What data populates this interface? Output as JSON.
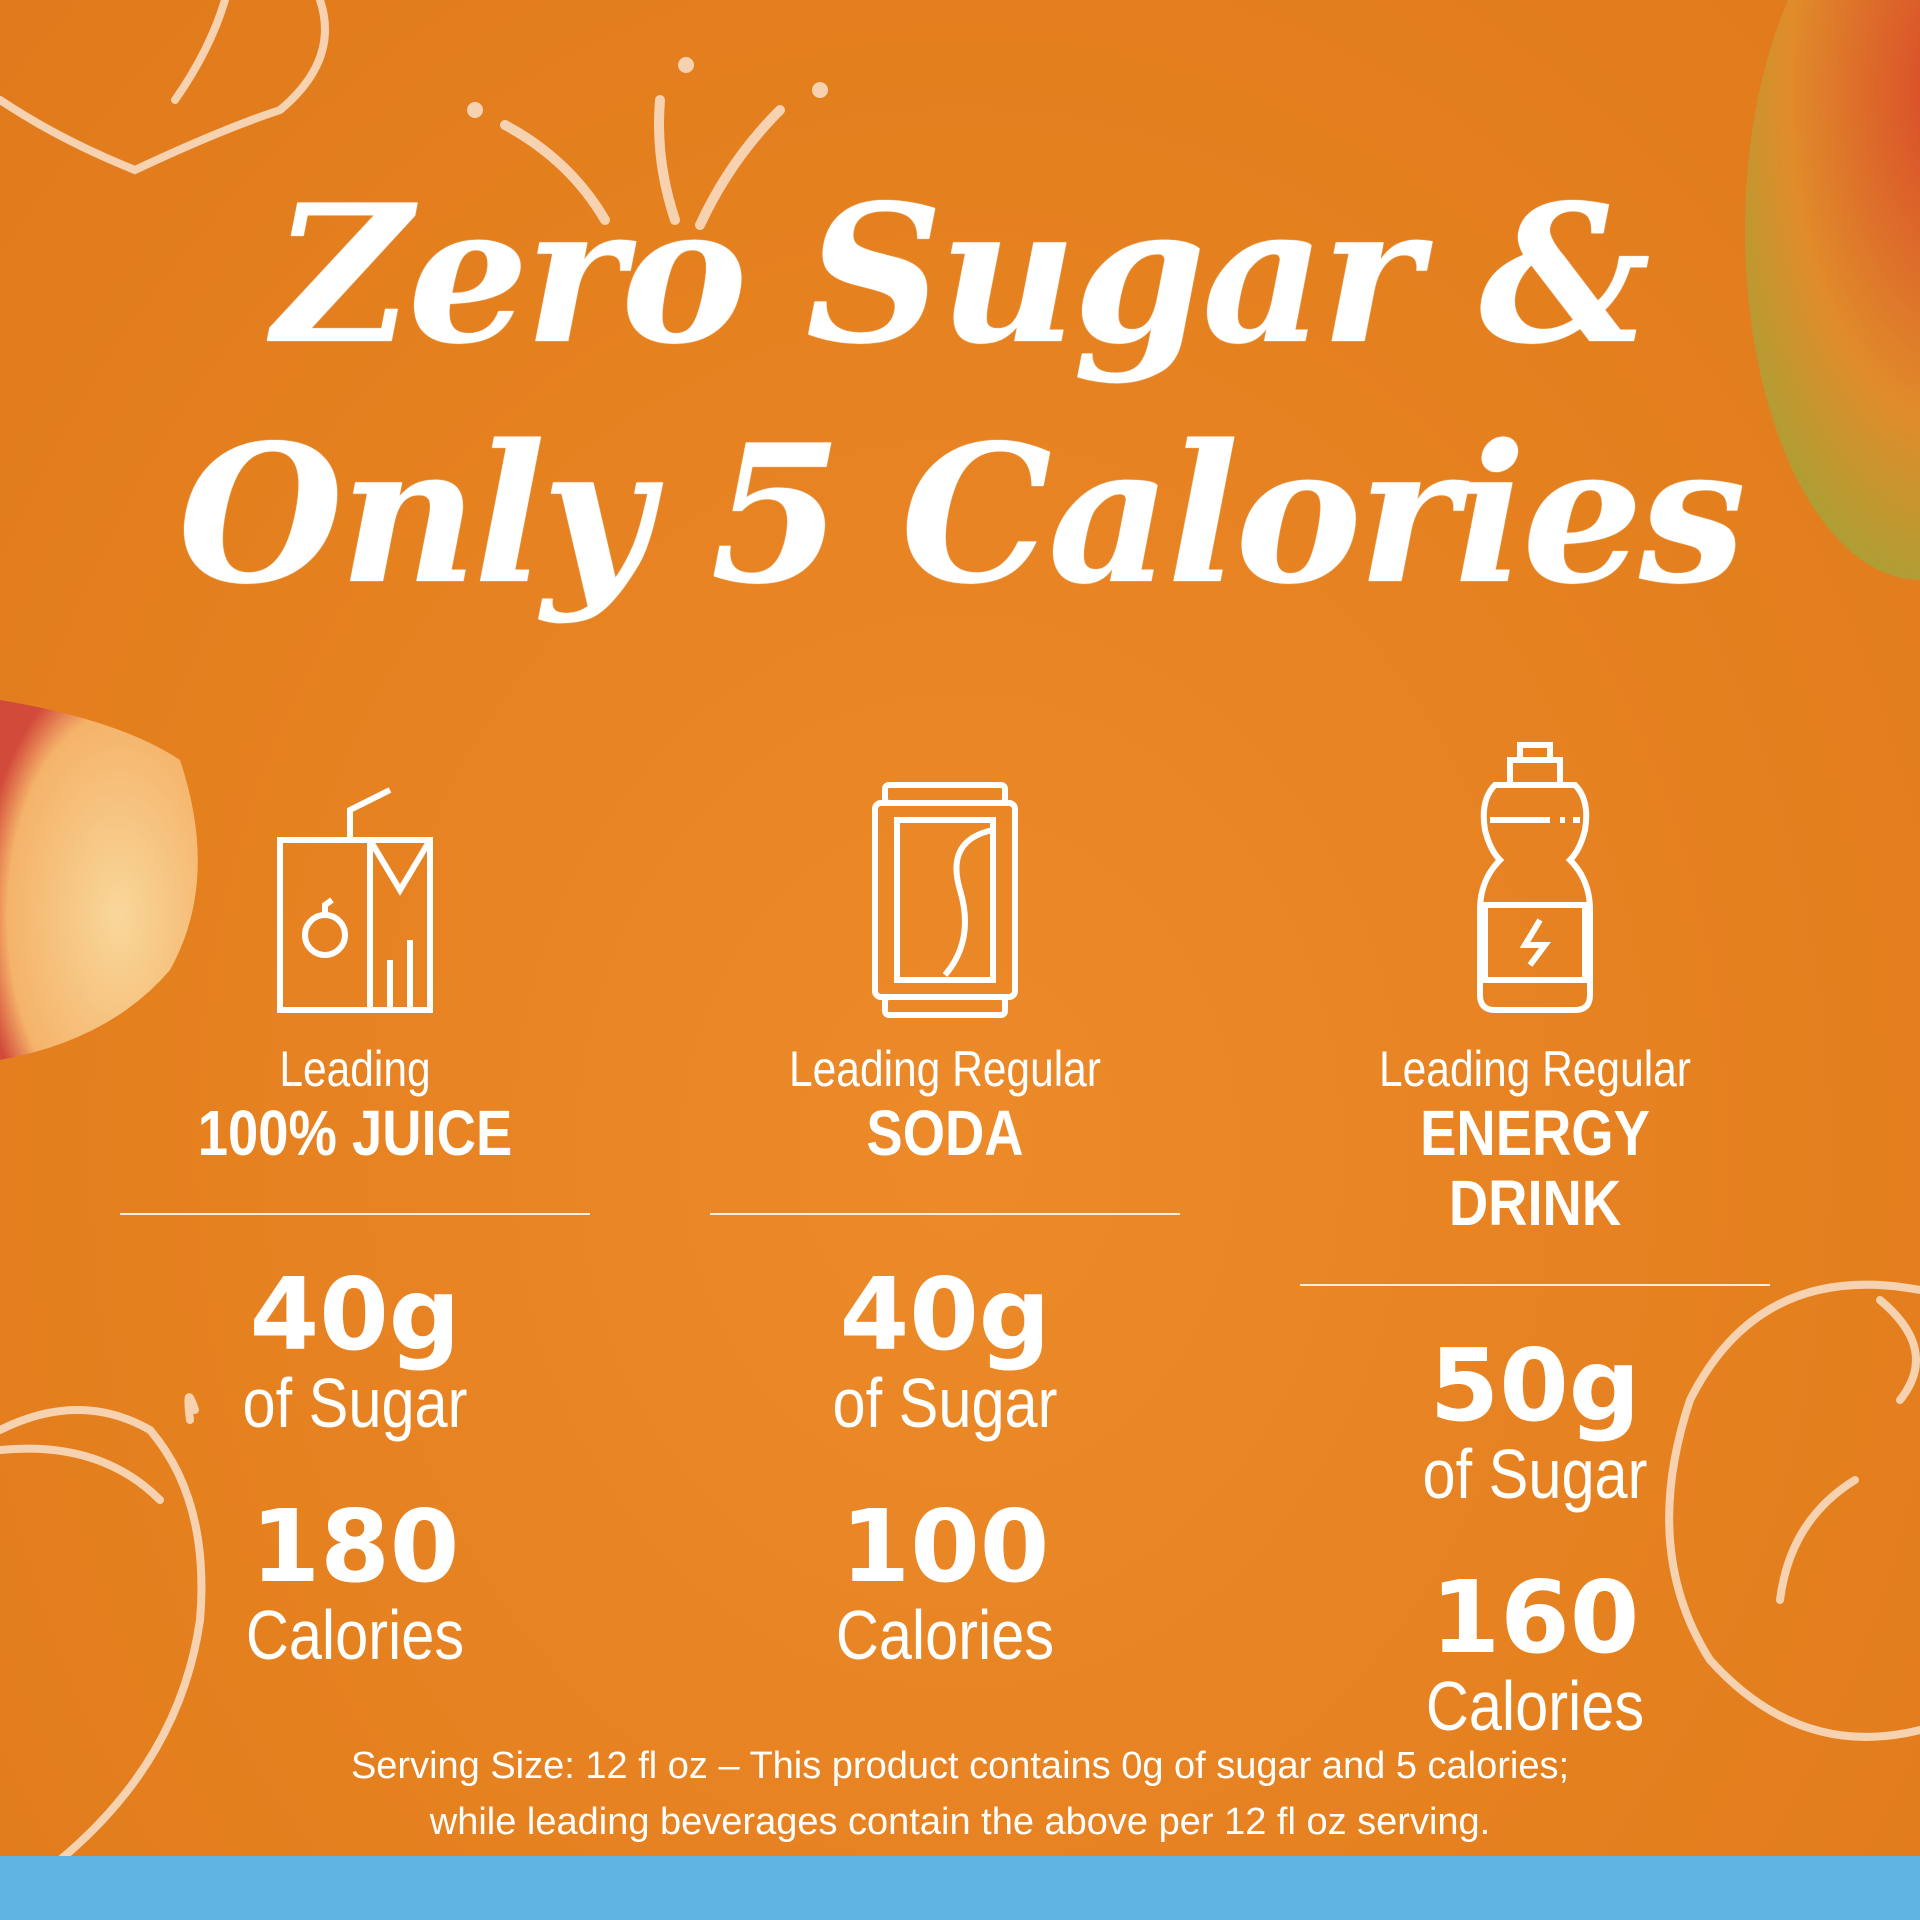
{
  "headline": {
    "line1": "Zero Sugar &",
    "line2": "Only 5 Calories"
  },
  "columns": [
    {
      "icon": "juice-box-icon",
      "lead": "Leading",
      "kind": "100% JUICE",
      "sugar": "40g",
      "sugar_label": "of Sugar",
      "calories": "180",
      "calories_label": "Calories"
    },
    {
      "icon": "soda-can-icon",
      "lead": "Leading Regular",
      "kind": "SODA",
      "sugar": "40g",
      "sugar_label": "of Sugar",
      "calories": "100",
      "calories_label": "Calories"
    },
    {
      "icon": "energy-drink-bottle-icon",
      "lead": "Leading Regular",
      "kind": "ENERGY DRINK",
      "sugar": "50g",
      "sugar_label": "of Sugar",
      "calories": "160",
      "calories_label": "Calories"
    }
  ],
  "footnote": {
    "line1": "Serving Size: 12 fl oz – This product contains 0g of sugar and 5 calories;",
    "line2": "while leading beverages contain the above per 12 fl oz serving."
  },
  "colors": {
    "background": "#E5801F",
    "bottom_bar": "#5EB3E3",
    "text": "#FFFFFF"
  }
}
